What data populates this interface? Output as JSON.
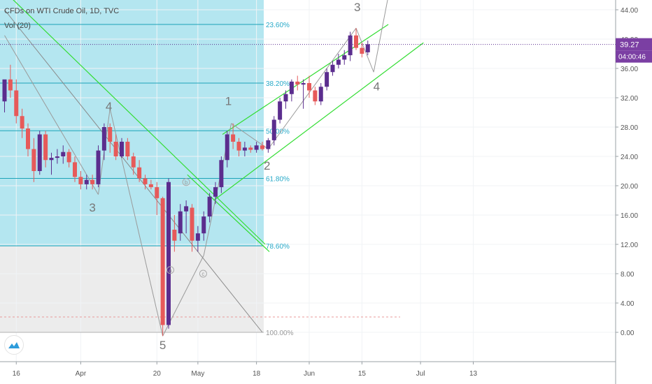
{
  "header": {
    "title": "CFDs on WTI Crude Oil, 1D, TVC",
    "volume_indicator": "Vol (20)"
  },
  "price_badge": {
    "value": "39.27",
    "countdown": "04:00:46",
    "color": "#7b3fa3"
  },
  "colors": {
    "up": "#5b2d8e",
    "down": "#e65a5a",
    "channel": "#33dd33",
    "fib_zone": "#b4e6f0",
    "fib_line": "#1da3b8",
    "fib_label": "#27a9c8",
    "grey_zone": "#ececec",
    "wave_label": "#777777"
  },
  "chart_data": {
    "type": "candlestick",
    "title": "CFDs on WTI Crude Oil, 1D, TVC",
    "yaxis": {
      "range": [
        -6,
        47
      ],
      "ticks": [
        0,
        4,
        8,
        12,
        16,
        20,
        24,
        28,
        32,
        36,
        40,
        44
      ],
      "tick_labels": [
        "0.00",
        "4.00",
        "8.00",
        "12.00",
        "16.00",
        "20.00",
        "24.00",
        "28.00",
        "32.00",
        "36.00",
        "40.00",
        "44.00"
      ]
    },
    "xaxis": {
      "range": [
        1,
        68
      ],
      "ticks": [
        {
          "label": "16",
          "day": 3
        },
        {
          "label": "Apr",
          "day": 14
        },
        {
          "label": "20",
          "day": 27
        },
        {
          "label": "May",
          "day": 34
        },
        {
          "label": "18",
          "day": 44
        },
        {
          "label": "Jun",
          "day": 53
        },
        {
          "label": "15",
          "day": 62
        },
        {
          "label": "Jul",
          "day": 72
        },
        {
          "label": "13",
          "day": 81
        }
      ]
    },
    "grid": true,
    "last_price": 39.27,
    "candles": [
      {
        "x": 1,
        "o": 31.5,
        "h": 34.0,
        "l": 30.0,
        "c": 34.5
      },
      {
        "x": 2,
        "o": 34.5,
        "h": 36.5,
        "l": 32.0,
        "c": 33.0
      },
      {
        "x": 3,
        "o": 33.0,
        "h": 34.5,
        "l": 28.5,
        "c": 29.5
      },
      {
        "x": 4,
        "o": 29.5,
        "h": 30.5,
        "l": 26.5,
        "c": 27.8
      },
      {
        "x": 5,
        "o": 27.8,
        "h": 28.5,
        "l": 24.0,
        "c": 25.0
      },
      {
        "x": 6,
        "o": 25.0,
        "h": 26.5,
        "l": 20.5,
        "c": 22.0
      },
      {
        "x": 7,
        "o": 22.0,
        "h": 27.5,
        "l": 21.5,
        "c": 27.0
      },
      {
        "x": 8,
        "o": 27.0,
        "h": 27.5,
        "l": 22.5,
        "c": 23.5
      },
      {
        "x": 9,
        "o": 23.5,
        "h": 24.5,
        "l": 21.5,
        "c": 23.8
      },
      {
        "x": 10,
        "o": 23.8,
        "h": 25.0,
        "l": 23.0,
        "c": 24.0
      },
      {
        "x": 11,
        "o": 24.0,
        "h": 25.5,
        "l": 23.0,
        "c": 24.6
      },
      {
        "x": 12,
        "o": 24.6,
        "h": 25.0,
        "l": 22.5,
        "c": 23.2
      },
      {
        "x": 13,
        "o": 23.2,
        "h": 24.0,
        "l": 20.5,
        "c": 21.2
      },
      {
        "x": 14,
        "o": 21.2,
        "h": 22.0,
        "l": 19.5,
        "c": 20.2
      },
      {
        "x": 15,
        "o": 20.2,
        "h": 21.5,
        "l": 19.5,
        "c": 20.8
      },
      {
        "x": 16,
        "o": 20.8,
        "h": 21.5,
        "l": 19.5,
        "c": 20.2
      },
      {
        "x": 17,
        "o": 20.2,
        "h": 25.5,
        "l": 19.8,
        "c": 24.8
      },
      {
        "x": 18,
        "o": 24.8,
        "h": 28.5,
        "l": 23.5,
        "c": 28.0
      },
      {
        "x": 19,
        "o": 28.0,
        "h": 28.5,
        "l": 24.5,
        "c": 26.0
      },
      {
        "x": 20,
        "o": 26.0,
        "h": 27.0,
        "l": 23.5,
        "c": 24.0
      },
      {
        "x": 21,
        "o": 24.0,
        "h": 26.5,
        "l": 23.8,
        "c": 26.0
      },
      {
        "x": 22,
        "o": 26.0,
        "h": 26.5,
        "l": 23.5,
        "c": 24.0
      },
      {
        "x": 23,
        "o": 24.0,
        "h": 24.5,
        "l": 21.5,
        "c": 22.5
      },
      {
        "x": 24,
        "o": 22.5,
        "h": 23.5,
        "l": 20.5,
        "c": 21.0
      },
      {
        "x": 25,
        "o": 21.0,
        "h": 21.5,
        "l": 19.5,
        "c": 20.2
      },
      {
        "x": 26,
        "o": 20.2,
        "h": 20.8,
        "l": 19.5,
        "c": 19.8
      },
      {
        "x": 27,
        "o": 19.8,
        "h": 20.5,
        "l": 16.0,
        "c": 18.3
      },
      {
        "x": 28,
        "o": 18.3,
        "h": 18.5,
        "l": -0.5,
        "c": 1.0
      },
      {
        "x": 29,
        "o": 1.0,
        "h": 21.0,
        "l": 0.5,
        "c": 20.5
      },
      {
        "x": 30,
        "o": 14.0,
        "h": 16.0,
        "l": 11.0,
        "c": 12.5
      },
      {
        "x": 31,
        "o": 13.5,
        "h": 17.5,
        "l": 12.5,
        "c": 16.5
      },
      {
        "x": 32,
        "o": 16.5,
        "h": 18.0,
        "l": 13.5,
        "c": 17.2
      },
      {
        "x": 33,
        "o": 17.0,
        "h": 17.5,
        "l": 11.0,
        "c": 12.5
      },
      {
        "x": 34,
        "o": 12.5,
        "h": 14.5,
        "l": 11.0,
        "c": 13.5
      },
      {
        "x": 35,
        "o": 13.5,
        "h": 16.5,
        "l": 12.5,
        "c": 15.8
      },
      {
        "x": 36,
        "o": 15.8,
        "h": 19.0,
        "l": 15.0,
        "c": 18.5
      },
      {
        "x": 37,
        "o": 18.5,
        "h": 20.5,
        "l": 17.5,
        "c": 19.8
      },
      {
        "x": 38,
        "o": 19.8,
        "h": 24.0,
        "l": 19.0,
        "c": 23.5
      },
      {
        "x": 39,
        "o": 23.5,
        "h": 27.5,
        "l": 22.5,
        "c": 27.0
      },
      {
        "x": 40,
        "o": 27.0,
        "h": 28.5,
        "l": 25.0,
        "c": 26.0
      },
      {
        "x": 41,
        "o": 26.0,
        "h": 26.5,
        "l": 24.0,
        "c": 24.8
      },
      {
        "x": 42,
        "o": 24.8,
        "h": 26.0,
        "l": 24.0,
        "c": 25.2
      },
      {
        "x": 43,
        "o": 25.2,
        "h": 25.5,
        "l": 24.5,
        "c": 24.9
      },
      {
        "x": 44,
        "o": 24.9,
        "h": 26.0,
        "l": 24.5,
        "c": 25.5
      },
      {
        "x": 45,
        "o": 25.5,
        "h": 26.0,
        "l": 24.8,
        "c": 25.0
      },
      {
        "x": 46,
        "o": 25.0,
        "h": 26.5,
        "l": 24.5,
        "c": 26.2
      },
      {
        "x": 47,
        "o": 26.2,
        "h": 29.5,
        "l": 25.5,
        "c": 29.0
      },
      {
        "x": 48,
        "o": 29.0,
        "h": 32.0,
        "l": 28.5,
        "c": 31.5
      },
      {
        "x": 49,
        "o": 31.5,
        "h": 33.0,
        "l": 30.5,
        "c": 32.5
      },
      {
        "x": 50,
        "o": 32.5,
        "h": 34.5,
        "l": 31.5,
        "c": 34.2
      },
      {
        "x": 51,
        "o": 34.2,
        "h": 35.0,
        "l": 33.0,
        "c": 33.8
      },
      {
        "x": 52,
        "o": 33.8,
        "h": 34.5,
        "l": 30.5,
        "c": 34.0
      },
      {
        "x": 53,
        "o": 34.0,
        "h": 35.0,
        "l": 32.0,
        "c": 33.0
      },
      {
        "x": 54,
        "o": 33.0,
        "h": 33.5,
        "l": 31.0,
        "c": 31.5
      },
      {
        "x": 55,
        "o": 31.5,
        "h": 34.0,
        "l": 31.0,
        "c": 33.5
      },
      {
        "x": 56,
        "o": 33.5,
        "h": 36.0,
        "l": 33.0,
        "c": 35.5
      },
      {
        "x": 57,
        "o": 35.5,
        "h": 37.0,
        "l": 35.0,
        "c": 36.5
      },
      {
        "x": 58,
        "o": 36.5,
        "h": 38.0,
        "l": 36.0,
        "c": 37.2
      },
      {
        "x": 59,
        "o": 37.2,
        "h": 38.5,
        "l": 36.5,
        "c": 37.8
      },
      {
        "x": 60,
        "o": 37.8,
        "h": 41.0,
        "l": 37.0,
        "c": 40.5
      },
      {
        "x": 61,
        "o": 40.5,
        "h": 41.5,
        "l": 38.5,
        "c": 38.8
      },
      {
        "x": 62,
        "o": 38.8,
        "h": 39.5,
        "l": 37.5,
        "c": 38.0
      },
      {
        "x": 63,
        "o": 38.2,
        "h": 39.8,
        "l": 37.8,
        "c": 39.3
      }
    ],
    "fibonacci": [
      {
        "label": "23.60%",
        "price": 42.0
      },
      {
        "label": "38.20%",
        "price": 34.0
      },
      {
        "label": "50.00%",
        "price": 27.5
      },
      {
        "label": "61.80%",
        "price": 21.0
      },
      {
        "label": "78.60%",
        "price": 11.8
      },
      {
        "label": "100.00%",
        "price": 0.0
      }
    ],
    "wave_labels": [
      {
        "text": "4",
        "x": 18.8,
        "y": 30.3
      },
      {
        "text": "3",
        "x": 16.0,
        "y": 16.5
      },
      {
        "text": "5",
        "x": 28.0,
        "y": -2.3
      },
      {
        "text": "1",
        "x": 39.2,
        "y": 31.0
      },
      {
        "text": "2",
        "x": 45.8,
        "y": 22.2
      },
      {
        "text": "3",
        "x": 61.2,
        "y": 43.8
      },
      {
        "text": "4",
        "x": 64.5,
        "y": 33.0
      }
    ],
    "sub_wave_labels": [
      {
        "text": "a",
        "x": 29.3,
        "y": 8.5
      },
      {
        "text": "b",
        "x": 32.0,
        "y": 20.5
      },
      {
        "text": "c",
        "x": 34.9,
        "y": 8.0
      }
    ],
    "annotation_labels": [
      "Vol (20)"
    ]
  }
}
